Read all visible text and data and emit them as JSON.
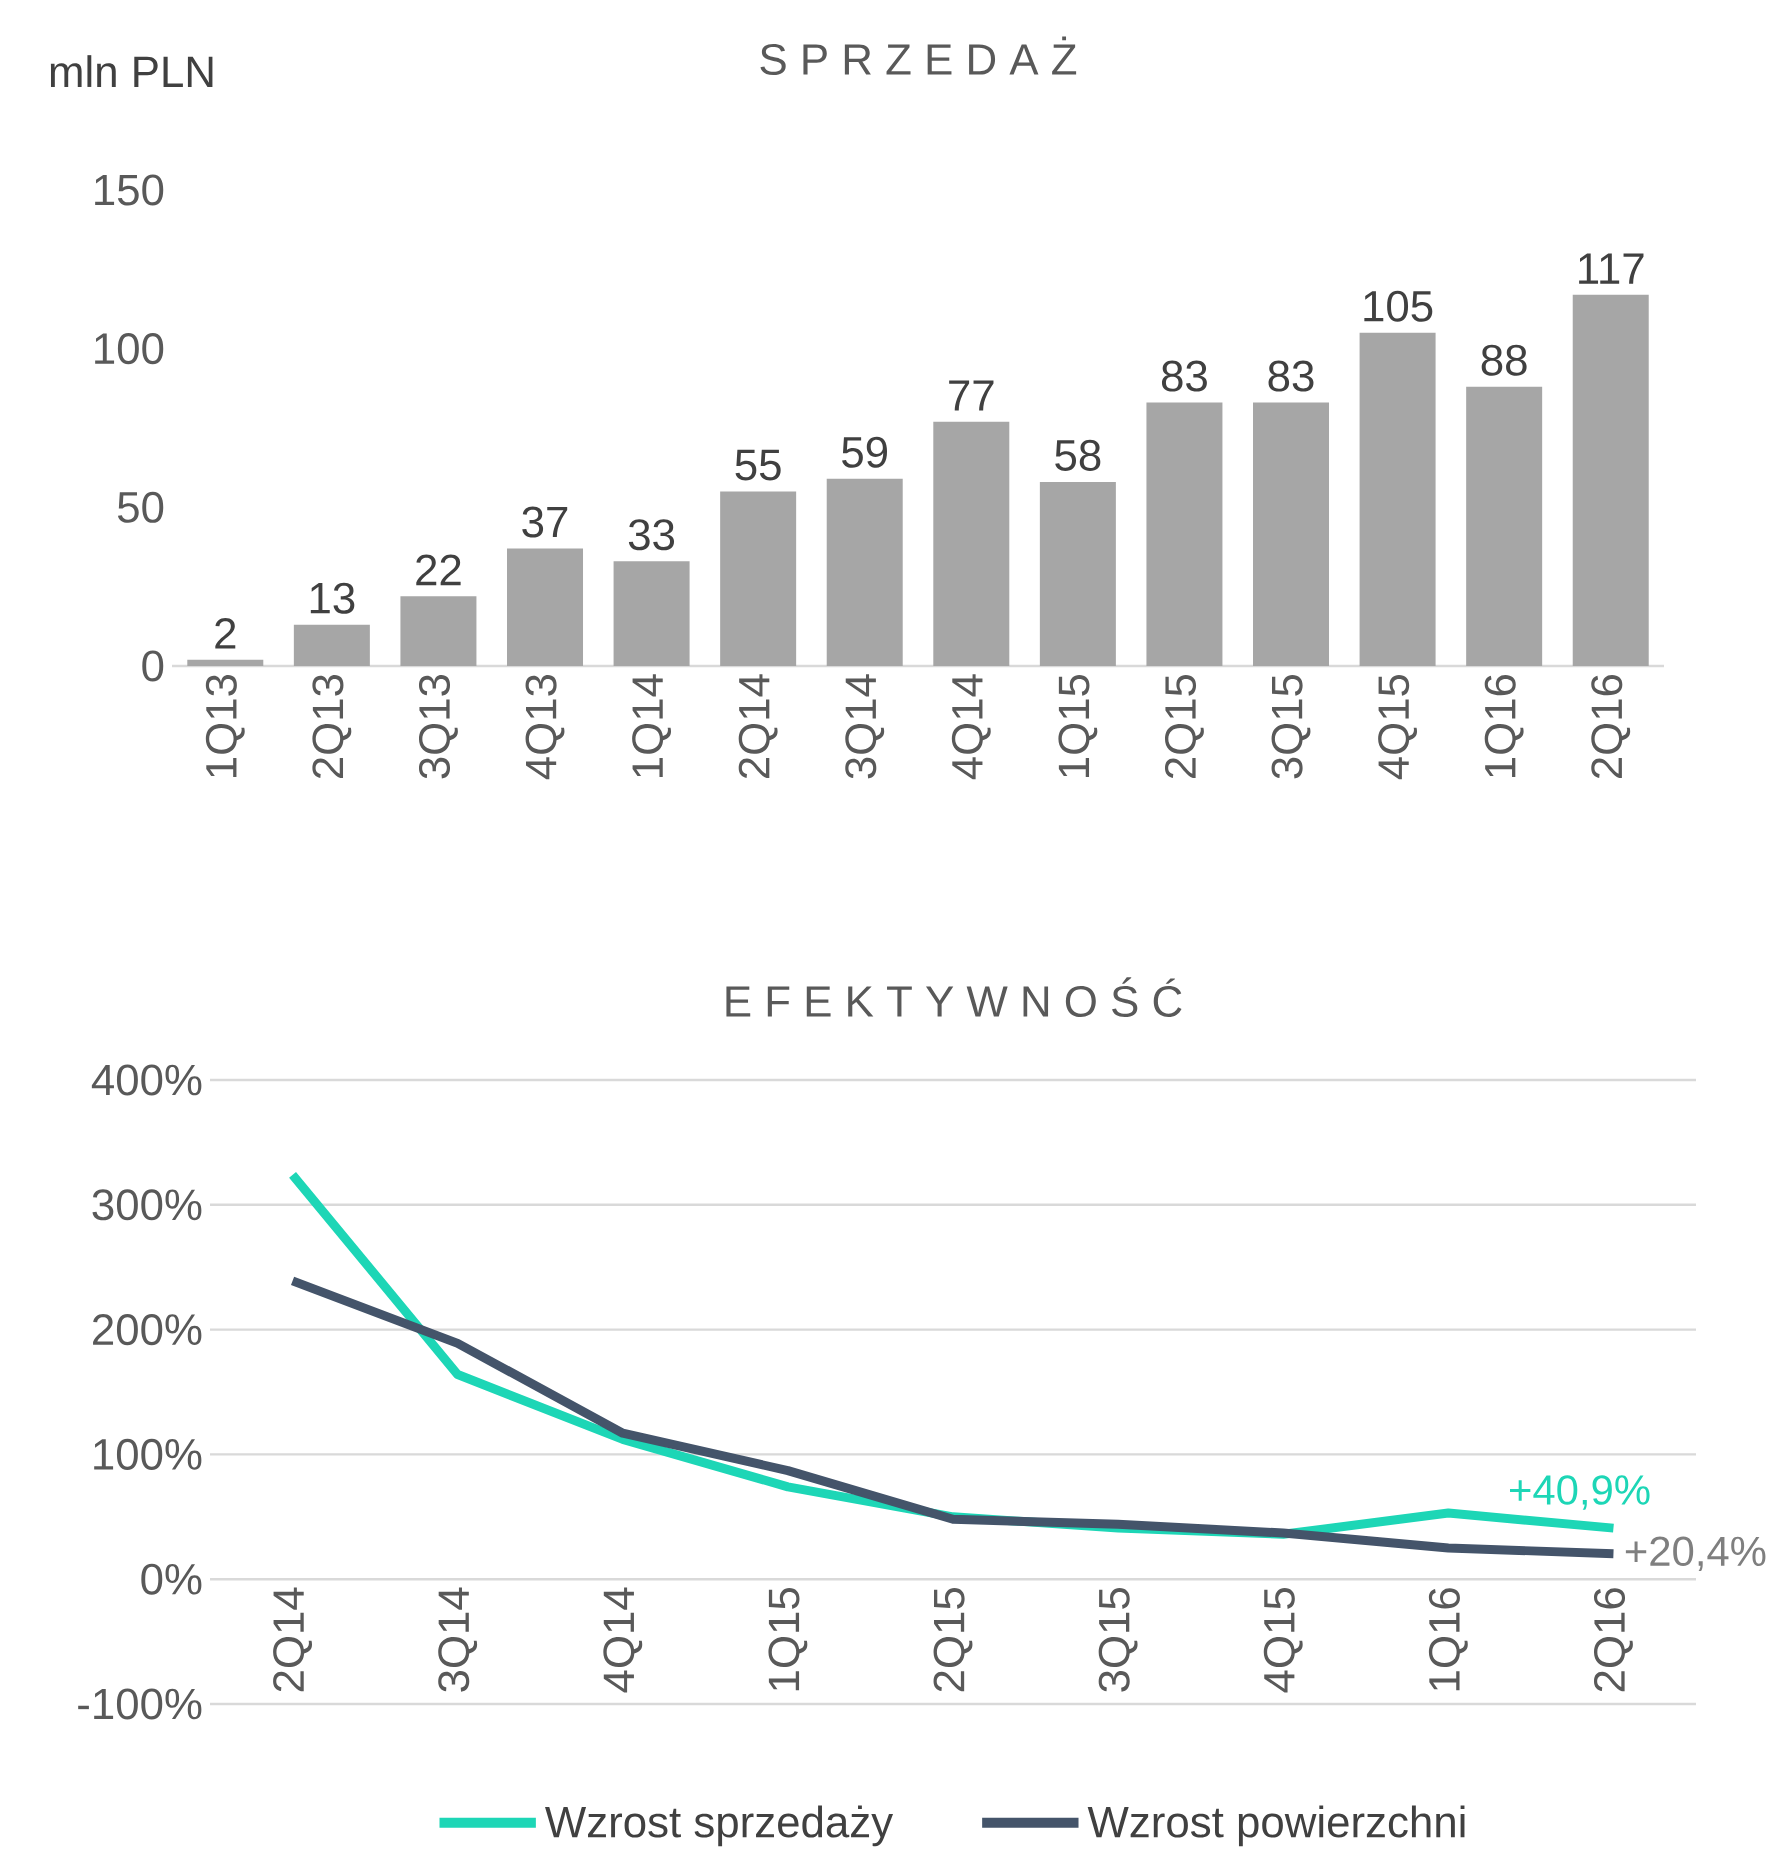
{
  "chart_data": [
    {
      "type": "bar",
      "title": "S P R Z E D A Ż",
      "ylabel": "mln PLN",
      "categories": [
        "1Q13",
        "2Q13",
        "3Q13",
        "4Q13",
        "1Q14",
        "2Q14",
        "3Q14",
        "4Q14",
        "1Q15",
        "2Q15",
        "3Q15",
        "4Q15",
        "1Q16",
        "2Q16"
      ],
      "values": [
        2,
        13,
        22,
        37,
        33,
        55,
        59,
        77,
        58,
        83,
        83,
        105,
        88,
        117
      ],
      "color": "#a6a6a6",
      "ylim": [
        0,
        150
      ],
      "yticks": [
        0,
        50,
        100,
        150
      ],
      "grid": false,
      "data_labels": true
    },
    {
      "type": "line",
      "title": "E F E K T Y W N O Ś Ć",
      "categories": [
        "2Q14",
        "3Q14",
        "4Q14",
        "1Q15",
        "2Q15",
        "3Q15",
        "4Q15",
        "1Q16",
        "2Q16"
      ],
      "series": [
        {
          "name": "Wzrost sprzedaży",
          "color": "#1dd6b6",
          "values": [
            324,
            164,
            112,
            74,
            50,
            41,
            36,
            53,
            40.9
          ],
          "value_labels": [
            null,
            null,
            null,
            null,
            null,
            null,
            null,
            null,
            "+40,9%"
          ]
        },
        {
          "name": "Wzrost powierzchni",
          "color": "#44546a",
          "values": [
            239,
            189,
            117,
            87,
            48,
            44,
            37,
            25,
            20.4
          ],
          "value_labels": [
            null,
            null,
            null,
            null,
            null,
            null,
            null,
            null,
            "+20,4%"
          ]
        }
      ],
      "ylim": [
        -100,
        400
      ],
      "yticks": [
        {
          "value": -100,
          "label": "-100%"
        },
        {
          "value": 0,
          "label": "0%"
        },
        {
          "value": 100,
          "label": "100%"
        },
        {
          "value": 200,
          "label": "200%"
        },
        {
          "value": 300,
          "label": "300%"
        },
        {
          "value": 400,
          "label": "400%"
        }
      ],
      "grid": "y",
      "legend": "bottom",
      "marker": "none",
      "line_style": "solid"
    }
  ]
}
